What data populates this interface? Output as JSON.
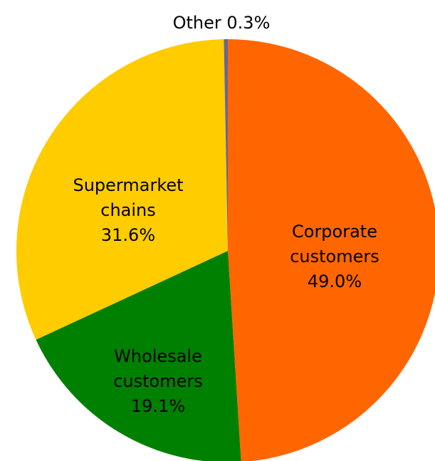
{
  "chart_data": {
    "type": "pie",
    "categories": [
      "Corporate customers",
      "Wholesale customers",
      "Supermarket chains",
      "Other"
    ],
    "values": [
      49.0,
      19.1,
      31.6,
      0.3
    ],
    "value_labels": [
      "49.0%",
      "19.1%",
      "31.6%",
      "0.3%"
    ],
    "colors": [
      "#ff6600",
      "#008000",
      "#ffcc00",
      "#666699"
    ]
  }
}
